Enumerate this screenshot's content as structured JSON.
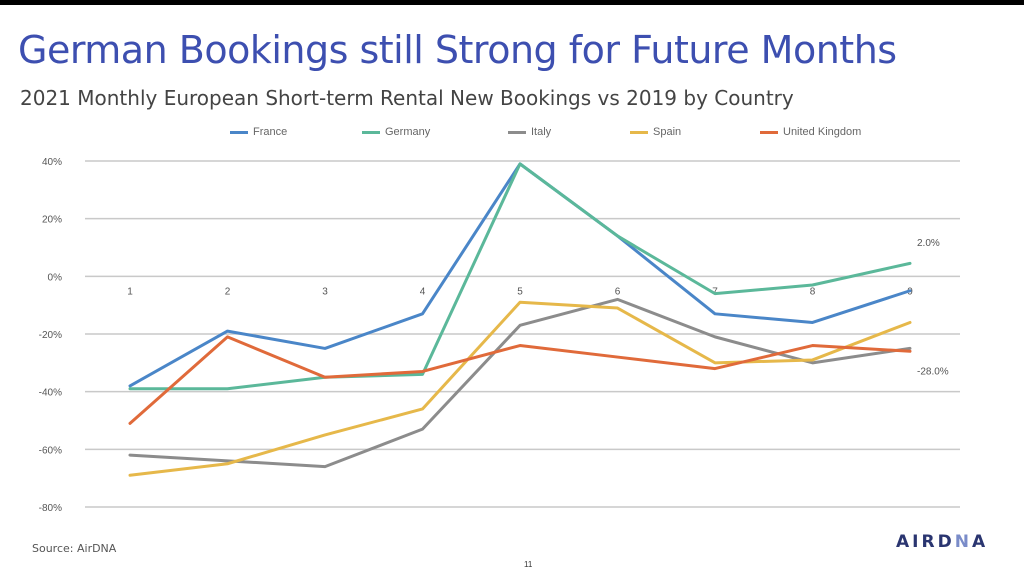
{
  "slide": {
    "title": "German Bookings still Strong for Future Months",
    "subtitle": "2021 Monthly European Short-term Rental New Bookings vs 2019 by Country",
    "source": "Source: AirDNA",
    "page_number": "11",
    "logo_text": "AIRDNA"
  },
  "chart_data": {
    "type": "line",
    "x": [
      1,
      2,
      3,
      4,
      5,
      6,
      7,
      8,
      9
    ],
    "ylim": [
      -80,
      40
    ],
    "yticks": [
      40,
      20,
      0,
      -20,
      -40,
      -60,
      -80
    ],
    "ytick_labels": [
      "40%",
      "20%",
      "0%",
      "-20%",
      "-40%",
      "-60%",
      "-80%"
    ],
    "grid": true,
    "legend_position": "top",
    "series": [
      {
        "name": "France",
        "color": "#4a86c8",
        "values": [
          -38,
          -19,
          -25,
          -13,
          39,
          14,
          -13,
          -16,
          -5
        ]
      },
      {
        "name": "Germany",
        "color": "#5bb89a",
        "values": [
          -39,
          -39,
          -35,
          -34,
          39,
          14,
          -6,
          -3,
          4.5
        ]
      },
      {
        "name": "Italy",
        "color": "#8c8c8c",
        "values": [
          -62,
          -64,
          -66,
          -53,
          -17,
          -8,
          -21,
          -30,
          -25
        ]
      },
      {
        "name": "Spain",
        "color": "#e6b84a",
        "values": [
          -69,
          -65,
          -55,
          -46,
          -9,
          -11,
          -30,
          -29,
          -16
        ]
      },
      {
        "name": "United Kingdom",
        "color": "#e06a3a",
        "values": [
          -51,
          -21,
          -35,
          -33,
          -24,
          -28,
          -32,
          -24,
          -26
        ]
      }
    ],
    "annotations": [
      "2.0%",
      "-28.0%"
    ]
  }
}
